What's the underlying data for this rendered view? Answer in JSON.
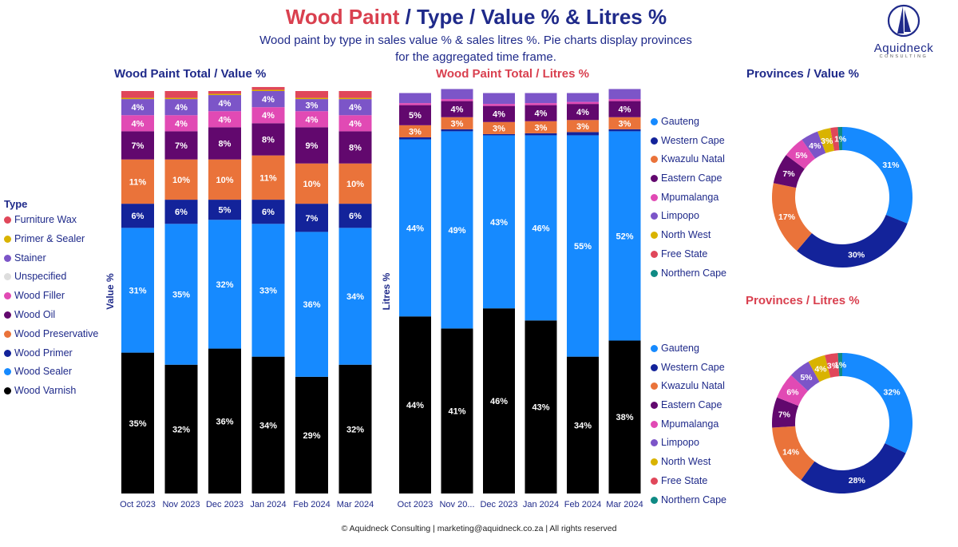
{
  "header": {
    "title_part1": "Wood Paint",
    "title_part2": " / Type / Value % & Litres %",
    "subtitle_line1": "Wood paint by type in sales value % & sales litres %. Pie charts display provinces",
    "subtitle_line2": "for the aggregated time frame."
  },
  "logo": {
    "name": "Aquidneck",
    "sub": "CONSULTING"
  },
  "footer": "© Aquidneck Consulting  | marketing@aquidneck.co.za | All rights reserved",
  "colors": {
    "title_blue": "#1f2a8a",
    "title_red": "#d9404f"
  },
  "type_legend": {
    "title": "Type",
    "items": [
      {
        "label": "Furniture Wax",
        "color": "#e0475a"
      },
      {
        "label": "Primer & Sealer",
        "color": "#d9b300"
      },
      {
        "label": "Stainer",
        "color": "#7c55c8"
      },
      {
        "label": "Unspecified",
        "color": "#dddddd"
      },
      {
        "label": "Wood Filler",
        "color": "#e14ab4"
      },
      {
        "label": "Wood Oil",
        "color": "#62086e"
      },
      {
        "label": "Wood Preservative",
        "color": "#ea733a"
      },
      {
        "label": "Wood Primer",
        "color": "#13239a"
      },
      {
        "label": "Wood Sealer",
        "color": "#168aff"
      },
      {
        "label": "Wood Varnish",
        "color": "#000000"
      }
    ]
  },
  "province_legend_value": {
    "items": [
      {
        "label": "Gauteng",
        "color": "#168aff"
      },
      {
        "label": "Western Cape",
        "color": "#13239a"
      },
      {
        "label": "Kwazulu Natal",
        "color": "#ea733a"
      },
      {
        "label": "Eastern Cape",
        "color": "#62086e"
      },
      {
        "label": "Mpumalanga",
        "color": "#e14ab4"
      },
      {
        "label": "Limpopo",
        "color": "#7c55c8"
      },
      {
        "label": "North West",
        "color": "#d9b300"
      },
      {
        "label": "Free State",
        "color": "#e0475a"
      },
      {
        "label": "Northern Cape",
        "color": "#0f8a84"
      }
    ]
  },
  "province_legend_litres": {
    "items": [
      {
        "label": "Gauteng",
        "color": "#168aff"
      },
      {
        "label": "Western Cape",
        "color": "#13239a"
      },
      {
        "label": "Kwazulu Natal",
        "color": "#ea733a"
      },
      {
        "label": "Eastern Cape",
        "color": "#62086e"
      },
      {
        "label": "Mpumalanga",
        "color": "#e14ab4"
      },
      {
        "label": "Limpopo",
        "color": "#7c55c8"
      },
      {
        "label": "North West",
        "color": "#d9b300"
      },
      {
        "label": "Free State",
        "color": "#e0475a"
      },
      {
        "label": "Northern Cape",
        "color": "#0f8a84"
      }
    ]
  },
  "chart_data": [
    {
      "id": "value_bars",
      "type": "bar",
      "stacked": true,
      "title": "Wood Paint Total / Value %",
      "title_color": "#1f2a8a",
      "ylabel": "Value %",
      "xlabel": "",
      "ylim": [
        0,
        100
      ],
      "categories": [
        "Oct 2023",
        "Nov 2023",
        "Dec 2023",
        "Jan 2024",
        "Feb 2024",
        "Mar 2024"
      ],
      "series": [
        {
          "name": "Wood Varnish",
          "color": "#000000",
          "label_color": "#ffffff",
          "values": [
            35,
            32,
            36,
            34,
            29,
            32
          ],
          "labels": [
            "35%",
            "32%",
            "36%",
            "34%",
            "29%",
            "32%"
          ]
        },
        {
          "name": "Wood Sealer",
          "color": "#168aff",
          "label_color": "#ffffff",
          "values": [
            31,
            35,
            32,
            33,
            36,
            34
          ],
          "labels": [
            "31%",
            "35%",
            "32%",
            "33%",
            "36%",
            "34%"
          ]
        },
        {
          "name": "Wood Primer",
          "color": "#13239a",
          "label_color": "#ffffff",
          "values": [
            6,
            6,
            5,
            6,
            7,
            6
          ],
          "labels": [
            "6%",
            "6%",
            "5%",
            "6%",
            "7%",
            "6%"
          ]
        },
        {
          "name": "Wood Preservative",
          "color": "#ea733a",
          "label_color": "#ffffff",
          "values": [
            11,
            10,
            10,
            11,
            10,
            10
          ],
          "labels": [
            "11%",
            "10%",
            "10%",
            "11%",
            "10%",
            "10%"
          ]
        },
        {
          "name": "Wood Oil",
          "color": "#62086e",
          "label_color": "#ffffff",
          "values": [
            7,
            7,
            8,
            8,
            9,
            8
          ],
          "labels": [
            "7%",
            "7%",
            "8%",
            "8%",
            "9%",
            "8%"
          ]
        },
        {
          "name": "Wood Filler",
          "color": "#e14ab4",
          "label_color": "#ffffff",
          "values": [
            4,
            4,
            4,
            4,
            4,
            4
          ],
          "labels": [
            "4%",
            "4%",
            "4%",
            "4%",
            "4%",
            "4%"
          ]
        },
        {
          "name": "Stainer",
          "color": "#7c55c8",
          "label_color": "#ffffff",
          "values": [
            4,
            4,
            4,
            4,
            3,
            4
          ],
          "labels": [
            "4%",
            "4%",
            "4%",
            "4%",
            "3%",
            "4%"
          ]
        },
        {
          "name": "Primer & Sealer",
          "color": "#d9b300",
          "label_color": "#ffffff",
          "values": [
            0.3,
            0.3,
            0.3,
            0.3,
            0.3,
            0.3
          ],
          "labels": [
            "",
            "",
            "",
            "",
            "",
            ""
          ]
        },
        {
          "name": "Furniture Wax",
          "color": "#e0475a",
          "label_color": "#ffffff",
          "values": [
            1.7,
            1.7,
            0.7,
            0.7,
            1.7,
            1.7
          ],
          "labels": [
            "",
            "",
            "",
            "",
            "",
            ""
          ]
        }
      ]
    },
    {
      "id": "litres_bars",
      "type": "bar",
      "stacked": true,
      "title": "Wood Paint Total / Litres %",
      "title_color": "#d9404f",
      "ylabel": "Litres %",
      "xlabel": "",
      "ylim": [
        0,
        100
      ],
      "categories": [
        "Oct 2023",
        "Nov 20...",
        "Dec 2023",
        "Jan 2024",
        "Feb 2024",
        "Mar 2024"
      ],
      "series": [
        {
          "name": "Wood Varnish",
          "color": "#000000",
          "label_color": "#ffffff",
          "values": [
            44,
            41,
            46,
            43,
            34,
            38
          ],
          "labels": [
            "44%",
            "41%",
            "46%",
            "43%",
            "34%",
            "38%"
          ]
        },
        {
          "name": "Wood Sealer",
          "color": "#168aff",
          "label_color": "#ffffff",
          "values": [
            44,
            49,
            43,
            46,
            55,
            52
          ],
          "labels": [
            "44%",
            "49%",
            "43%",
            "46%",
            "55%",
            "52%"
          ]
        },
        {
          "name": "Wood Primer",
          "color": "#13239a",
          "label_color": "#ffffff",
          "values": [
            0.5,
            0.5,
            0.3,
            0.5,
            0.8,
            0.5
          ],
          "labels": [
            "",
            "",
            "",
            "",
            "",
            ""
          ]
        },
        {
          "name": "Wood Preservative",
          "color": "#ea733a",
          "label_color": "#ffffff",
          "values": [
            3,
            3,
            3,
            3,
            3,
            3
          ],
          "labels": [
            "3%",
            "3%",
            "3%",
            "3%",
            "3%",
            "3%"
          ]
        },
        {
          "name": "Wood Oil",
          "color": "#62086e",
          "label_color": "#ffffff",
          "values": [
            5,
            4,
            4,
            4,
            4,
            4
          ],
          "labels": [
            "5%",
            "4%",
            "4%",
            "4%",
            "4%",
            "4%"
          ]
        },
        {
          "name": "Wood Filler",
          "color": "#e14ab4",
          "label_color": "#ffffff",
          "values": [
            0.5,
            0.5,
            0.5,
            0.5,
            0.5,
            0.5
          ],
          "labels": [
            "",
            "",
            "",
            "",
            "",
            ""
          ]
        },
        {
          "name": "Stainer",
          "color": "#7c55c8",
          "label_color": "#ffffff",
          "values": [
            2.5,
            2.5,
            2.7,
            2.5,
            2.2,
            2.5
          ],
          "labels": [
            "",
            "",
            "",
            "",
            "",
            ""
          ]
        }
      ]
    },
    {
      "id": "value_donut",
      "type": "pie",
      "donut": true,
      "title": "Provinces / Value %",
      "title_color": "#1f2a8a",
      "categories": [
        "Gauteng",
        "Western Cape",
        "Kwazulu Natal",
        "Eastern Cape",
        "Mpumalanga",
        "Limpopo",
        "North West",
        "Free State",
        "Northern Cape"
      ],
      "values": [
        31,
        30,
        17,
        7,
        5,
        4,
        3,
        1.7,
        1
      ],
      "labels": [
        "31%",
        "30%",
        "17%",
        "7%",
        "5%",
        "4%",
        "3%",
        "",
        "1%"
      ],
      "colors": [
        "#168aff",
        "#13239a",
        "#ea733a",
        "#62086e",
        "#e14ab4",
        "#7c55c8",
        "#d9b300",
        "#e0475a",
        "#0f8a84"
      ]
    },
    {
      "id": "litres_donut",
      "type": "pie",
      "donut": true,
      "title": "Provinces / Litres %",
      "title_color": "#d9404f",
      "categories": [
        "Gauteng",
        "Western Cape",
        "Kwazulu Natal",
        "Eastern Cape",
        "Mpumalanga",
        "Limpopo",
        "North West",
        "Free State",
        "Northern Cape"
      ],
      "values": [
        32,
        28,
        14,
        7,
        6,
        5,
        4,
        3,
        1
      ],
      "labels": [
        "32%",
        "28%",
        "14%",
        "7%",
        "6%",
        "5%",
        "4%",
        "3%",
        "1%"
      ],
      "colors": [
        "#168aff",
        "#13239a",
        "#ea733a",
        "#62086e",
        "#e14ab4",
        "#7c55c8",
        "#d9b300",
        "#e0475a",
        "#0f8a84"
      ]
    }
  ]
}
